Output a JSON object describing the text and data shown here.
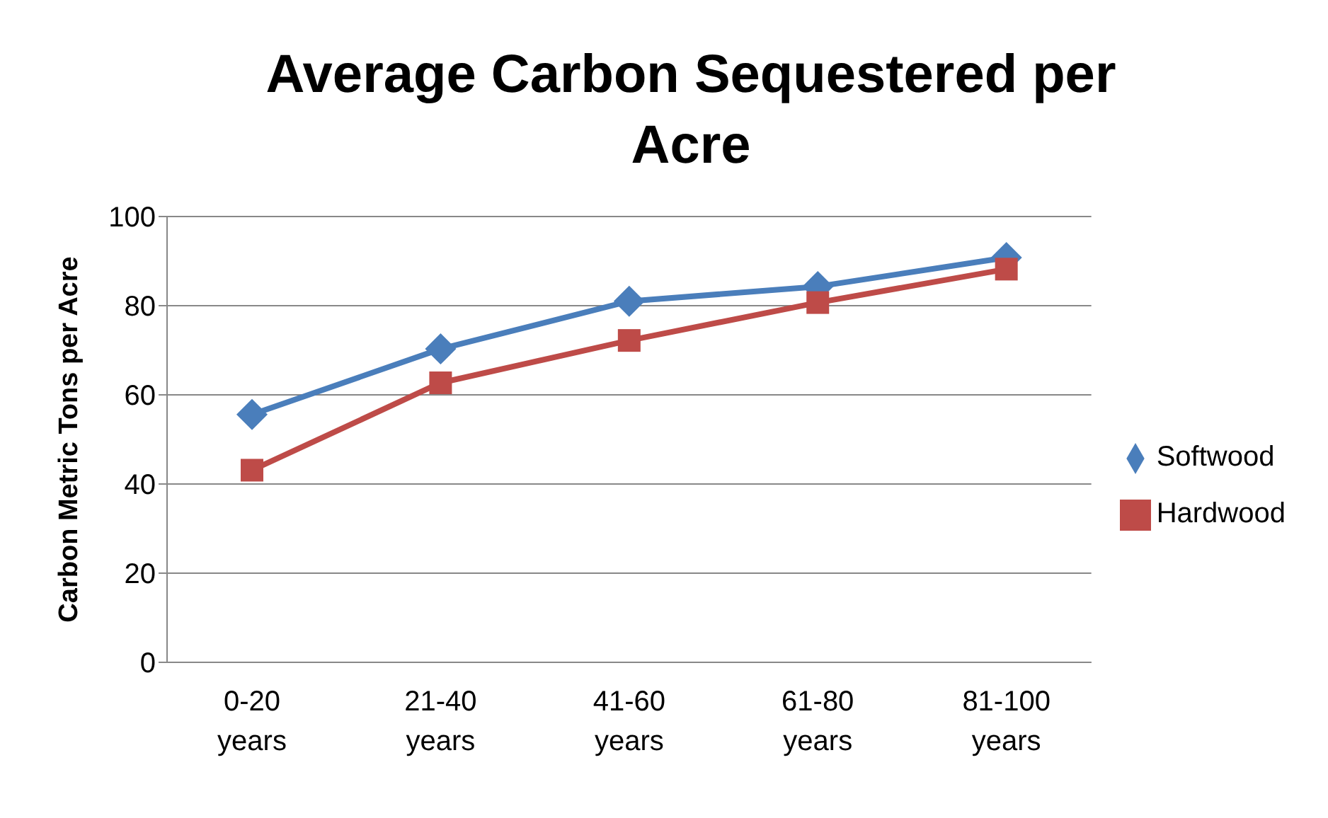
{
  "chart_data": {
    "type": "line",
    "title": "Average Carbon Sequestered per Acre",
    "ylabel": "Carbon Metric Tons per Acre",
    "categories": [
      "0-20 years",
      "21-40 years",
      "41-60 years",
      "61-80 years",
      "81-100 years"
    ],
    "series": [
      {
        "name": "Softwood",
        "color": "#4a7ebb",
        "marker": "diamond",
        "values": [
          55.6,
          70.3,
          81,
          84.3,
          90.8
        ]
      },
      {
        "name": "Hardwood",
        "color": "#be4b48",
        "marker": "square",
        "values": [
          43.1,
          62.7,
          72.2,
          80.7,
          88.2
        ]
      }
    ],
    "ylim": [
      0,
      100
    ],
    "yticks": [
      0,
      20,
      40,
      60,
      80,
      100
    ],
    "grid": "y",
    "legend": "right",
    "line_style": "solid"
  }
}
